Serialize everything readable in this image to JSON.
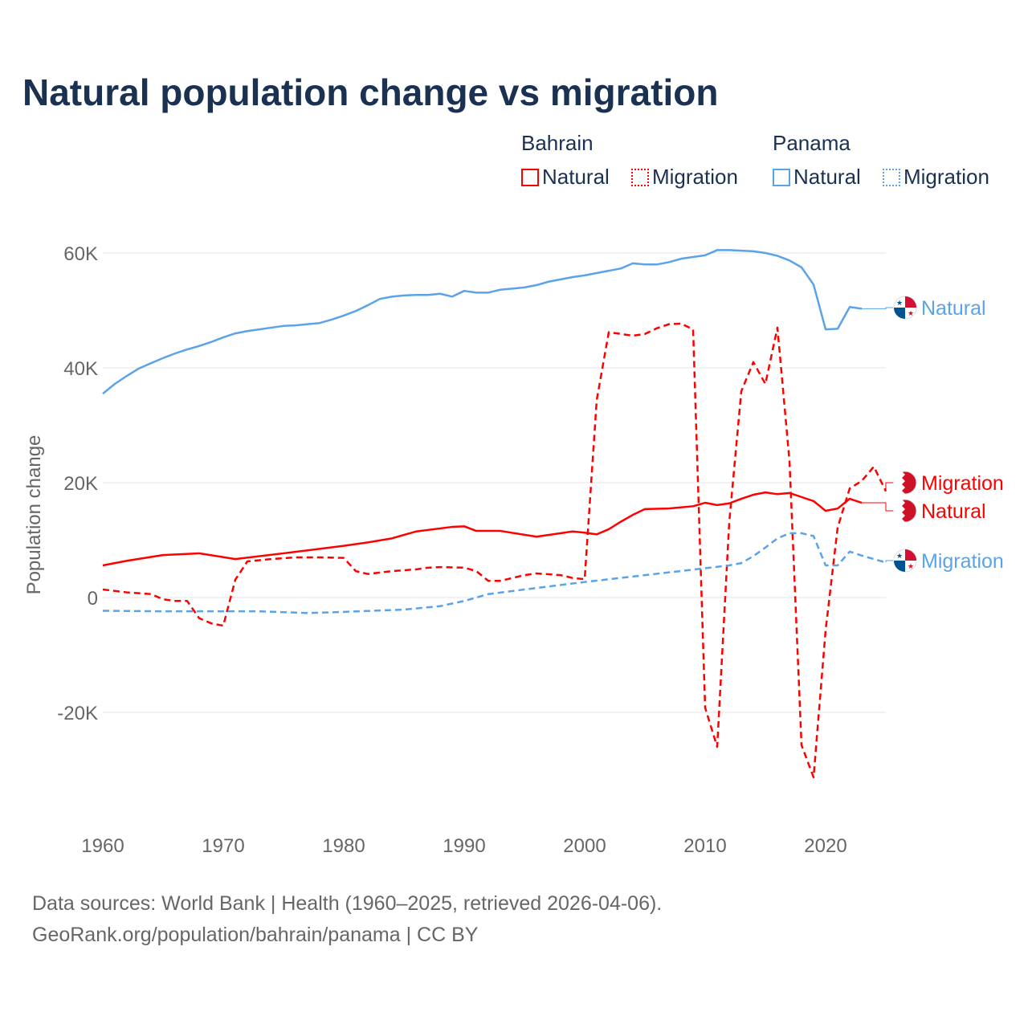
{
  "chart_data": {
    "type": "line",
    "title": "Natural population change vs migration",
    "ylabel": "Population change",
    "xlabel": "",
    "ylim": [
      -32000,
      66000
    ],
    "xlim": [
      1960,
      2025
    ],
    "yticks": [
      {
        "v": -20000,
        "label": "-20K"
      },
      {
        "v": 0,
        "label": "0"
      },
      {
        "v": 20000,
        "label": "20K"
      },
      {
        "v": 40000,
        "label": "40K"
      },
      {
        "v": 60000,
        "label": "60K"
      }
    ],
    "xticks": [
      1960,
      1970,
      1980,
      1990,
      2000,
      2010,
      2020
    ],
    "legend": {
      "groups": [
        {
          "name": "Bahrain",
          "items": [
            "Natural",
            "Migration"
          ]
        },
        {
          "name": "Panama",
          "items": [
            "Natural",
            "Migration"
          ]
        }
      ],
      "placement": "top-right"
    },
    "series": [
      {
        "name": "Panama Natural",
        "country": "Panama",
        "label": "Natural",
        "color": "#5ba3e8",
        "dash": false,
        "x": [
          1960,
          1961,
          1962,
          1963,
          1964,
          1965,
          1966,
          1967,
          1968,
          1969,
          1970,
          1971,
          1972,
          1973,
          1974,
          1975,
          1976,
          1977,
          1978,
          1979,
          1980,
          1981,
          1982,
          1983,
          1984,
          1985,
          1986,
          1987,
          1988,
          1989,
          1990,
          1991,
          1992,
          1993,
          1994,
          1995,
          1996,
          1997,
          1998,
          1999,
          2000,
          2001,
          2002,
          2003,
          2004,
          2005,
          2006,
          2007,
          2008,
          2009,
          2010,
          2011,
          2012,
          2013,
          2014,
          2015,
          2016,
          2017,
          2018,
          2019,
          2020,
          2021,
          2022,
          2023
        ],
        "y": [
          35500,
          37200,
          38600,
          39900,
          40800,
          41700,
          42500,
          43200,
          43800,
          44500,
          45300,
          46000,
          46400,
          46700,
          47000,
          47300,
          47400,
          47600,
          47800,
          48400,
          49100,
          49900,
          50900,
          52000,
          52400,
          52600,
          52700,
          52700,
          52900,
          52400,
          53400,
          53100,
          53100,
          53600,
          53800,
          54000,
          54400,
          55000,
          55400,
          55800,
          56100,
          56500,
          56900,
          57300,
          58200,
          58000,
          58000,
          58400,
          59000,
          59300,
          59600,
          60500,
          60500,
          60400,
          60300,
          60000,
          59500,
          58700,
          57500,
          54500,
          46700,
          46800,
          50600,
          50300
        ]
      },
      {
        "name": "Panama Migration",
        "country": "Panama",
        "label": "Migration",
        "color": "#5ba3e8",
        "dash": true,
        "x": [
          1960,
          1965,
          1970,
          1973,
          1977,
          1980,
          1985,
          1988,
          1990,
          1992,
          1995,
          2000,
          2005,
          2010,
          2012,
          2013,
          2014,
          2015,
          2016,
          2017,
          2018,
          2019,
          2020,
          2021,
          2022,
          2023,
          2024,
          2025
        ],
        "y": [
          -2300,
          -2400,
          -2400,
          -2400,
          -2700,
          -2500,
          -2100,
          -1500,
          -600,
          600,
          1400,
          2700,
          3900,
          5100,
          5600,
          6000,
          7200,
          8700,
          10300,
          11200,
          11200,
          10700,
          5600,
          5600,
          8000,
          7300,
          6700,
          6100
        ]
      },
      {
        "name": "Bahrain Natural",
        "country": "Bahrain",
        "label": "Natural",
        "color": "#ff0000",
        "dash": false,
        "x": [
          1960,
          1962,
          1965,
          1968,
          1971,
          1975,
          1980,
          1982,
          1984,
          1986,
          1989,
          1990,
          1991,
          1993,
          1996,
          1999,
          2000,
          2001,
          2002,
          2003,
          2004,
          2005,
          2007,
          2009,
          2010,
          2011,
          2012,
          2013,
          2014,
          2015,
          2016,
          2017,
          2018,
          2019,
          2020,
          2021,
          2022,
          2023
        ],
        "y": [
          5600,
          6400,
          7400,
          7700,
          6700,
          7700,
          9000,
          9600,
          10300,
          11500,
          12300,
          12400,
          11600,
          11600,
          10600,
          11500,
          11300,
          11000,
          11900,
          13200,
          14400,
          15400,
          15500,
          15900,
          16500,
          16100,
          16400,
          17200,
          17900,
          18300,
          18000,
          18200,
          17500,
          16800,
          15100,
          15500,
          17200,
          16500
        ]
      },
      {
        "name": "Bahrain Migration",
        "country": "Bahrain",
        "label": "Migration",
        "color": "#ff0000",
        "dash": true,
        "x": [
          1960,
          1962,
          1964,
          1965,
          1966,
          1967,
          1968,
          1969,
          1970,
          1971,
          1972,
          1974,
          1976,
          1978,
          1980,
          1981,
          1982,
          1984,
          1986,
          1987,
          1988,
          1990,
          1991,
          1992,
          1993,
          1995,
          1996,
          1998,
          1999,
          2000,
          2001,
          2002,
          2003,
          2004,
          2005,
          2006,
          2007,
          2008,
          2009,
          2010,
          2011,
          2012,
          2013,
          2014,
          2015,
          2016,
          2017,
          2018,
          2019,
          2020,
          2021,
          2022,
          2023,
          2024,
          2025
        ],
        "y": [
          1400,
          900,
          600,
          -300,
          -600,
          -600,
          -3600,
          -4500,
          -4900,
          3100,
          6300,
          6700,
          7000,
          7000,
          6900,
          4600,
          4100,
          4600,
          4900,
          5200,
          5300,
          5200,
          4600,
          2900,
          2900,
          3900,
          4200,
          3900,
          3400,
          3200,
          34400,
          46200,
          45900,
          45600,
          45900,
          46900,
          47600,
          47700,
          46700,
          -19200,
          -26000,
          13100,
          35900,
          41000,
          37200,
          47000,
          23800,
          -25700,
          -31300,
          -5700,
          12200,
          19000,
          20300,
          22800,
          18500
        ]
      }
    ]
  },
  "footer": {
    "line1": "Data sources: World Bank | Health (1960–2025, retrieved 2026-04-06).",
    "line2": "GeoRank.org/population/bahrain/panama | CC BY"
  }
}
